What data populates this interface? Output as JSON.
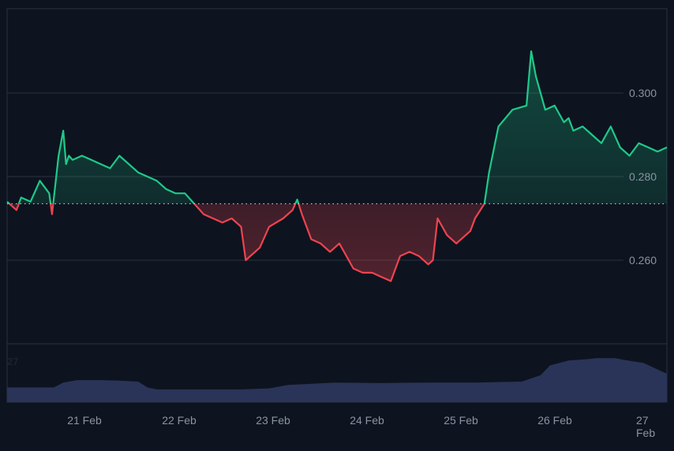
{
  "chart_data": {
    "type": "area",
    "title": "",
    "xlabel": "",
    "ylabel": "",
    "baseline": 0.2735,
    "ylim": [
      0.248,
      0.318
    ],
    "y_ticks": [
      "0.300",
      "0.280",
      "0.260"
    ],
    "x_ticks": [
      "21 Feb",
      "22 Feb",
      "23 Feb",
      "24 Feb",
      "25 Feb",
      "26 Feb",
      "27 Feb"
    ],
    "volume_label": "27",
    "colors": {
      "above": "#1fc98a",
      "below": "#ef4350",
      "volume": "#2a3459",
      "grid": "#2a3240",
      "text": "#8a93a3",
      "background": "#0d141f"
    },
    "series": [
      {
        "name": "price",
        "x": [
          0,
          0.1,
          0.15,
          0.25,
          0.35,
          0.45,
          0.48,
          0.55,
          0.6,
          0.63,
          0.66,
          0.7,
          0.8,
          0.9,
          1.0,
          1.1,
          1.2,
          1.3,
          1.4,
          1.5,
          1.6,
          1.7,
          1.8,
          1.9,
          2.0,
          2.1,
          2.2,
          2.3,
          2.4,
          2.5,
          2.55,
          2.6,
          2.7,
          2.8,
          2.95,
          3.05,
          3.1,
          3.15,
          3.25,
          3.35,
          3.45,
          3.55,
          3.6,
          3.7,
          3.8,
          3.9,
          4.0,
          4.1,
          4.2,
          4.3,
          4.4,
          4.5,
          4.55,
          4.6,
          4.7,
          4.8,
          4.95,
          5.0,
          5.1,
          5.15,
          5.25,
          5.4,
          5.55,
          5.6,
          5.65,
          5.75,
          5.85,
          5.9,
          5.95,
          6.0,
          6.05,
          6.15,
          6.25,
          6.35,
          6.45,
          6.55,
          6.65,
          6.75,
          6.85,
          6.95,
          7.05
        ],
        "values": [
          0.274,
          0.272,
          0.275,
          0.274,
          0.279,
          0.276,
          0.271,
          0.285,
          0.291,
          0.283,
          0.285,
          0.284,
          0.285,
          0.284,
          0.283,
          0.282,
          0.285,
          0.283,
          0.281,
          0.28,
          0.279,
          0.277,
          0.276,
          0.276,
          0.2735,
          0.271,
          0.27,
          0.269,
          0.27,
          0.268,
          0.26,
          0.261,
          0.263,
          0.268,
          0.27,
          0.272,
          0.2745,
          0.271,
          0.265,
          0.264,
          0.262,
          0.264,
          0.262,
          0.258,
          0.257,
          0.257,
          0.256,
          0.255,
          0.261,
          0.262,
          0.261,
          0.259,
          0.26,
          0.27,
          0.266,
          0.264,
          0.267,
          0.27,
          0.2735,
          0.281,
          0.292,
          0.296,
          0.297,
          0.31,
          0.304,
          0.296,
          0.297,
          0.295,
          0.293,
          0.294,
          0.291,
          0.292,
          0.29,
          0.288,
          0.292,
          0.287,
          0.285,
          0.288,
          0.287,
          0.286,
          0.287
        ]
      },
      {
        "name": "volume",
        "x": [
          0,
          0.5,
          0.6,
          0.75,
          1.0,
          1.2,
          1.4,
          1.5,
          1.6,
          2.0,
          2.5,
          2.8,
          3.0,
          3.5,
          4.0,
          4.5,
          5.0,
          5.5,
          5.7,
          5.8,
          6.0,
          6.2,
          6.3,
          6.5,
          6.6,
          6.8,
          7.05
        ],
        "values": [
          0.3,
          0.3,
          0.4,
          0.45,
          0.45,
          0.44,
          0.42,
          0.3,
          0.26,
          0.26,
          0.26,
          0.28,
          0.35,
          0.4,
          0.39,
          0.4,
          0.4,
          0.42,
          0.55,
          0.75,
          0.85,
          0.88,
          0.9,
          0.9,
          0.86,
          0.8,
          0.58
        ]
      }
    ]
  }
}
